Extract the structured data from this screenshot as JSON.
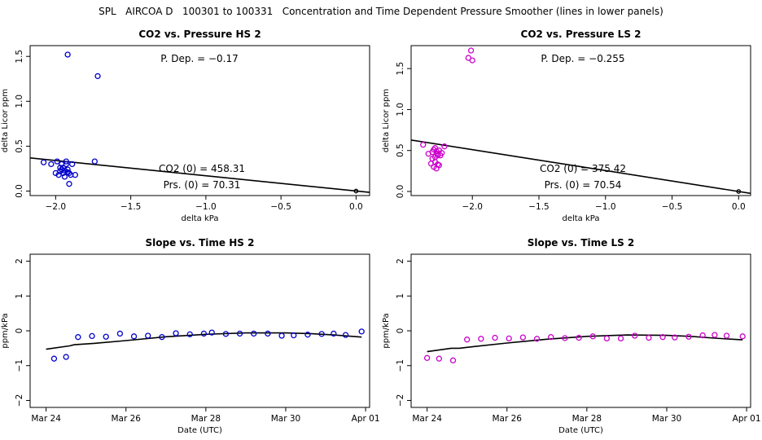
{
  "page_title": "SPL   AIRCOA D   100301 to 100331   Concentration and Time Dependent Pressure Smoother (lines in lower panels)",
  "colors": {
    "hs": "#0000cc",
    "ls": "#cc00cc",
    "line": "#000000"
  },
  "chart_data": [
    {
      "type": "scatter",
      "title": "CO2 vs. Pressure HS 2",
      "xlabel": "delta kPa",
      "ylabel": "delta Licor ppm",
      "xlim": [
        -2.17,
        0.09
      ],
      "ylim": [
        -0.05,
        1.62
      ],
      "xticks": [
        -2.0,
        -1.5,
        -1.0,
        -0.5,
        0.0
      ],
      "xtick_labels": [
        "−2.0",
        "−1.5",
        "−1.0",
        "−0.5",
        "0.0"
      ],
      "yticks": [
        0.0,
        0.5,
        1.0,
        1.5
      ],
      "ytick_labels": [
        "0.0",
        "0.5",
        "1.0",
        "1.5"
      ],
      "color": "#0000cc",
      "annotations": [
        "P. Dep. =  −0.17",
        "CO2 (0) =  458.31",
        "Prs. (0) =  70.31"
      ],
      "points": {
        "x": [
          -1.92,
          -1.72,
          -2.08,
          -2.03,
          -2.0,
          -1.99,
          -1.98,
          -1.97,
          -1.96,
          -1.96,
          -1.95,
          -1.95,
          -1.94,
          -1.93,
          -1.93,
          -1.92,
          -1.91,
          -1.9,
          -1.89,
          -1.87,
          -1.97,
          -1.94,
          -1.92,
          -1.74,
          -1.91,
          0.0
        ],
        "y": [
          1.52,
          1.28,
          0.32,
          0.3,
          0.2,
          0.33,
          0.18,
          0.22,
          0.24,
          0.3,
          0.26,
          0.2,
          0.16,
          0.33,
          0.3,
          0.24,
          0.2,
          0.18,
          0.3,
          0.18,
          0.26,
          0.23,
          0.21,
          0.33,
          0.08,
          0.0
        ]
      },
      "fit": {
        "x": [
          -2.17,
          0.09
        ],
        "y": [
          0.369,
          -0.015
        ]
      }
    },
    {
      "type": "scatter",
      "title": "CO2 vs. Pressure LS 2",
      "xlabel": "delta kPa",
      "ylabel": "delta Licor ppm",
      "xlim": [
        -2.46,
        0.09
      ],
      "ylim": [
        -0.05,
        1.78
      ],
      "xticks": [
        -2.0,
        -1.5,
        -1.0,
        -0.5,
        0.0
      ],
      "xtick_labels": [
        "−2.0",
        "−1.5",
        "−1.0",
        "−0.5",
        "0.0"
      ],
      "yticks": [
        0.0,
        0.5,
        1.0,
        1.5
      ],
      "ytick_labels": [
        "0.0",
        "0.5",
        "1.0",
        "1.5"
      ],
      "color": "#cc00cc",
      "annotations": [
        "P. Dep. =  −0.255",
        "CO2 (0) =  375.42",
        "Prs. (0) =  70.54"
      ],
      "points": {
        "x": [
          -2.03,
          -2.01,
          -2.0,
          -2.37,
          -2.33,
          -2.3,
          -2.29,
          -2.28,
          -2.27,
          -2.26,
          -2.25,
          -2.24,
          -2.23,
          -2.28,
          -2.3,
          -2.26,
          -2.29,
          -2.27,
          -2.25,
          -2.21,
          -2.28,
          -2.26,
          -2.31,
          0.0
        ],
        "y": [
          1.63,
          1.72,
          1.6,
          0.57,
          0.46,
          0.48,
          0.51,
          0.53,
          0.49,
          0.46,
          0.5,
          0.44,
          0.47,
          0.36,
          0.4,
          0.33,
          0.3,
          0.28,
          0.32,
          0.55,
          0.42,
          0.44,
          0.34,
          0.0
        ]
      },
      "fit": {
        "x": [
          -2.46,
          0.09
        ],
        "y": [
          0.627,
          -0.023
        ]
      }
    },
    {
      "type": "scatter",
      "title": "Slope vs. Time HS 2",
      "xlabel": "Date (UTC)",
      "ylabel": "ppm/kPa",
      "xlim": [
        23.6,
        32.1
      ],
      "ylim": [
        -2.2,
        2.2
      ],
      "xticks": [
        24,
        26,
        28,
        30,
        32
      ],
      "xtick_labels": [
        "Mar 24",
        "Mar 26",
        "Mar 28",
        "Mar 30",
        "Apr 01"
      ],
      "yticks": [
        -2,
        -1,
        0,
        1,
        2
      ],
      "ytick_labels": [
        "−2",
        "−1",
        "0",
        "1",
        "2"
      ],
      "color": "#0000cc",
      "points": {
        "x": [
          24.2,
          24.5,
          24.8,
          25.15,
          25.5,
          25.85,
          26.2,
          26.55,
          26.9,
          27.25,
          27.6,
          27.95,
          28.15,
          28.5,
          28.85,
          29.2,
          29.55,
          29.9,
          30.2,
          30.55,
          30.9,
          31.2,
          31.5,
          31.9
        ],
        "y": [
          -0.8,
          -0.75,
          -0.18,
          -0.15,
          -0.17,
          -0.08,
          -0.16,
          -0.14,
          -0.18,
          -0.07,
          -0.1,
          -0.08,
          -0.05,
          -0.09,
          -0.08,
          -0.08,
          -0.08,
          -0.14,
          -0.13,
          -0.11,
          -0.09,
          -0.08,
          -0.12,
          -0.02
        ]
      },
      "curve": {
        "x": [
          24.0,
          24.6,
          24.7,
          25.2,
          26.0,
          27.0,
          28.0,
          29.0,
          30.0,
          30.6,
          31.2,
          31.9
        ],
        "y": [
          -0.53,
          -0.43,
          -0.4,
          -0.36,
          -0.28,
          -0.17,
          -0.1,
          -0.06,
          -0.06,
          -0.08,
          -0.12,
          -0.18
        ]
      }
    },
    {
      "type": "scatter",
      "title": "Slope vs. Time LS 2",
      "xlabel": "Date (UTC)",
      "ylabel": "ppm/kPa",
      "xlim": [
        23.6,
        32.1
      ],
      "ylim": [
        -2.2,
        2.2
      ],
      "xticks": [
        24,
        26,
        28,
        30,
        32
      ],
      "xtick_labels": [
        "Mar 24",
        "Mar 26",
        "Mar 28",
        "Mar 30",
        "Apr 01"
      ],
      "yticks": [
        -2,
        -1,
        0,
        1,
        2
      ],
      "ytick_labels": [
        "−2",
        "−1",
        "0",
        "1",
        "2"
      ],
      "color": "#cc00cc",
      "points": {
        "x": [
          24.0,
          24.3,
          24.65,
          25.0,
          25.35,
          25.7,
          26.05,
          26.4,
          26.75,
          27.1,
          27.45,
          27.8,
          28.15,
          28.5,
          28.85,
          29.2,
          29.55,
          29.9,
          30.2,
          30.55,
          30.9,
          31.2,
          31.5,
          31.9
        ],
        "y": [
          -0.78,
          -0.8,
          -0.85,
          -0.25,
          -0.23,
          -0.2,
          -0.22,
          -0.19,
          -0.23,
          -0.18,
          -0.21,
          -0.2,
          -0.16,
          -0.22,
          -0.22,
          -0.14,
          -0.2,
          -0.18,
          -0.19,
          -0.17,
          -0.13,
          -0.12,
          -0.14,
          -0.16
        ]
      },
      "curve": {
        "x": [
          24.0,
          24.6,
          24.8,
          25.2,
          26.0,
          27.0,
          28.0,
          29.0,
          30.0,
          30.6,
          31.2,
          31.9
        ],
        "y": [
          -0.6,
          -0.5,
          -0.5,
          -0.45,
          -0.35,
          -0.24,
          -0.16,
          -0.12,
          -0.13,
          -0.16,
          -0.21,
          -0.26
        ]
      }
    }
  ]
}
